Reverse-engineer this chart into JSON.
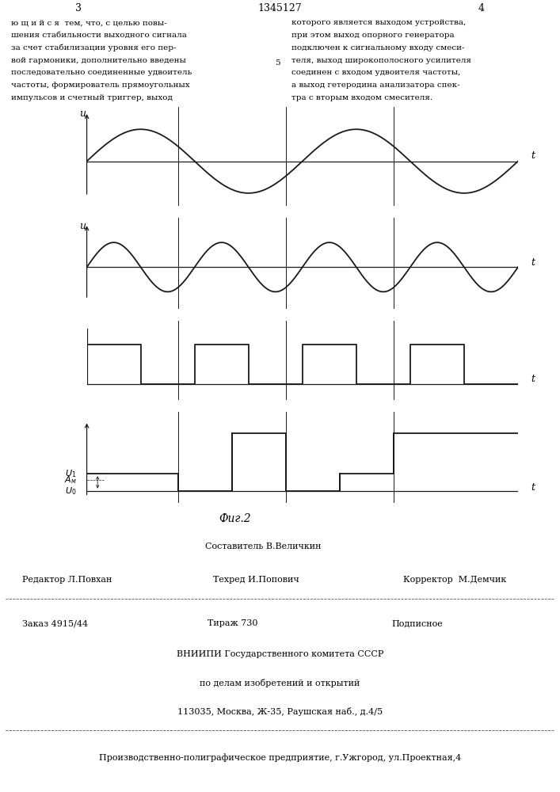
{
  "bg_color": "#ffffff",
  "line_color": "#1a1a1a",
  "page_color": "#ffffff",
  "left_text_line1": "ю щ и й с я  тем, что, с целью повы-",
  "left_text_line2": "шения стабильности выходного сигнала",
  "left_text_line3": "за счет стабилизации уровня его пер-",
  "left_text_line4": "вой гармоники, дополнительно введены",
  "left_text_line5": "последовательно соединенные удвоитель",
  "left_text_line6": "частоты, формирователь прямоугольных",
  "left_text_line7": "импульсов и счетный триггер, выход",
  "right_text": "которого является выходом устройства,\nпри этом выход опорного генератора\nподключен к сигнальному входу смеси-\nтеля, выход широкополосного усилителя\nсоединен с входом удвоителя частоты,\nа выход гетеродина анализатора спек-\nтра с вторым входом смесителя.",
  "fig_caption": "Фиг.2",
  "footer_editor": "Редактор Л.Повхан",
  "footer_composer": "Составитель В.Величкин",
  "footer_techred": "Техред И.Попович",
  "footer_corrector": "Корректор  М.Демчик",
  "footer_order": "Заказ 4915/44",
  "footer_tirazh": "Тираж 730",
  "footer_podp": "Подписное",
  "footer_vniip": "ВНИИПИ Государственного комитета СССР",
  "footer_delam": "по делам изобретений и открытий",
  "footer_addr": "113035, Москва, Ж-35, Раушская наб., д.4/5",
  "footer_factory": "Производственно-полиграфическое предприятие, г.Ужгород, ул.Проектная,4"
}
